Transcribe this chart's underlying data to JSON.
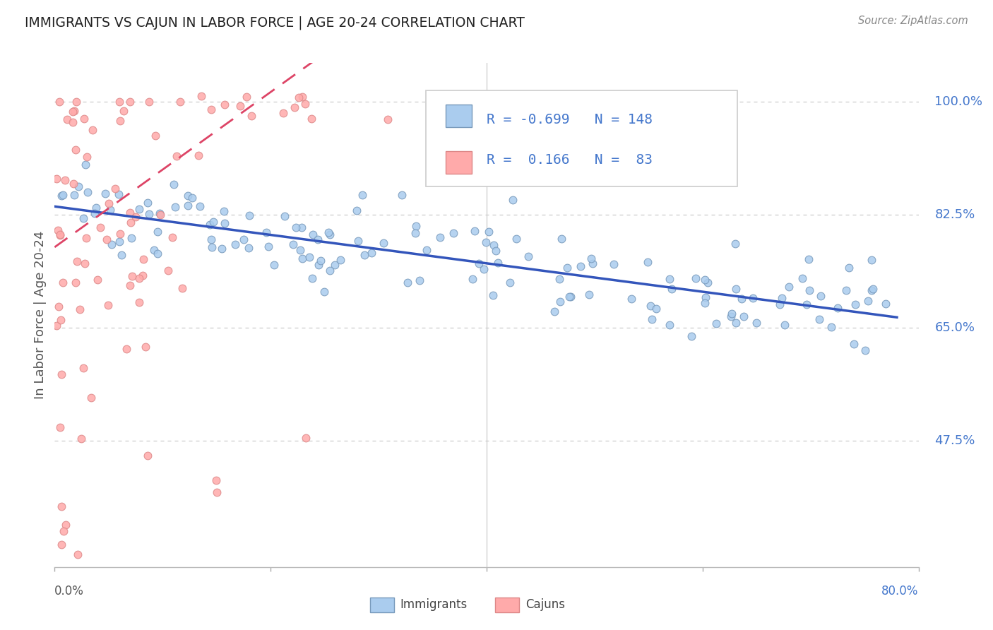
{
  "title": "IMMIGRANTS VS CAJUN IN LABOR FORCE | AGE 20-24 CORRELATION CHART",
  "source": "Source: ZipAtlas.com",
  "ylabel": "In Labor Force | Age 20-24",
  "xmin": 0.0,
  "xmax": 0.8,
  "ymin": 0.28,
  "ymax": 1.06,
  "blue_scatter_color": "#AACCEE",
  "blue_scatter_edge": "#7799BB",
  "pink_scatter_color": "#FFAAAA",
  "pink_scatter_edge": "#DD8888",
  "trend_blue_color": "#3355BB",
  "trend_pink_color": "#DD4466",
  "axis_tick_color": "#4477CC",
  "title_color": "#222222",
  "source_color": "#888888",
  "grid_color": "#CCCCCC",
  "legend_r_blue": "-0.699",
  "legend_n_blue": "148",
  "legend_r_pink": "0.166",
  "legend_n_pink": "83",
  "n_immigrants": 148,
  "n_cajuns": 83,
  "imm_slope": -0.22,
  "imm_intercept": 0.838,
  "caj_slope": 1.2,
  "caj_intercept": 0.775,
  "ytick_positions": [
    0.475,
    0.65,
    0.825,
    1.0
  ],
  "ytick_labels": [
    "47.5%",
    "65.0%",
    "82.5%",
    "100.0%"
  ]
}
